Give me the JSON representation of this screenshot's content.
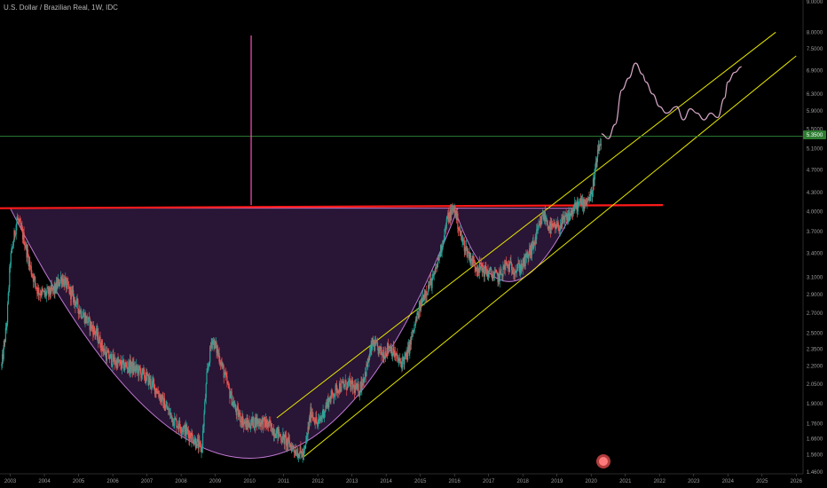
{
  "header": {
    "title": "U.S. Dollar / Brazilian Real, 1W, IDC"
  },
  "chart_data": {
    "type": "candlestick",
    "y_scale": "log",
    "ylim": [
      1.45,
      9.0
    ],
    "xlim": [
      2002.7,
      2026.2
    ],
    "x_ticks": [
      "2003",
      "2004",
      "2005",
      "2006",
      "2007",
      "2008",
      "2009",
      "2010",
      "2011",
      "2012",
      "2013",
      "2014",
      "2015",
      "2016",
      "2017",
      "2018",
      "2019",
      "2020",
      "2021",
      "2022",
      "2023",
      "2024",
      "2025",
      "2026"
    ],
    "y_ticks": [
      "9.0000",
      "8.0000",
      "7.5000",
      "6.9000",
      "6.3000",
      "5.9000",
      "5.5000",
      "5.1000",
      "4.7000",
      "4.3000",
      "4.0000",
      "3.7000",
      "3.4000",
      "3.1000",
      "2.9000",
      "2.7000",
      "2.5000",
      "2.3500",
      "2.2000",
      "2.0500",
      "1.9000",
      "1.7600",
      "1.6600",
      "1.5600",
      "1.4600"
    ],
    "last_price_label": "5.3500",
    "grid": false,
    "colors": {
      "background": "#000000",
      "up": "#26a69a",
      "down": "#ef5350",
      "resistance": "#ff1a1a",
      "channel": "#e6e600",
      "cup_fill": "#7b3fa0",
      "projection": "#d8a8c8",
      "price_line": "#2e7d32",
      "spike": "#ff4db8"
    },
    "price_path": [
      [
        2002.75,
        2.2
      ],
      [
        2002.9,
        2.6
      ],
      [
        2003.0,
        3.3
      ],
      [
        2003.2,
        3.9
      ],
      [
        2003.4,
        3.6
      ],
      [
        2003.6,
        3.2
      ],
      [
        2003.8,
        2.95
      ],
      [
        2004.0,
        2.9
      ],
      [
        2004.3,
        2.95
      ],
      [
        2004.5,
        3.1
      ],
      [
        2004.8,
        2.9
      ],
      [
        2005.0,
        2.75
      ],
      [
        2005.3,
        2.6
      ],
      [
        2005.5,
        2.5
      ],
      [
        2005.8,
        2.3
      ],
      [
        2006.0,
        2.25
      ],
      [
        2006.3,
        2.2
      ],
      [
        2006.5,
        2.2
      ],
      [
        2006.8,
        2.15
      ],
      [
        2007.0,
        2.1
      ],
      [
        2007.3,
        2.0
      ],
      [
        2007.5,
        1.9
      ],
      [
        2007.8,
        1.78
      ],
      [
        2008.0,
        1.74
      ],
      [
        2008.3,
        1.68
      ],
      [
        2008.6,
        1.59
      ],
      [
        2008.75,
        2.1
      ],
      [
        2008.9,
        2.45
      ],
      [
        2009.1,
        2.3
      ],
      [
        2009.4,
        2.0
      ],
      [
        2009.6,
        1.85
      ],
      [
        2009.9,
        1.75
      ],
      [
        2010.2,
        1.78
      ],
      [
        2010.5,
        1.76
      ],
      [
        2010.8,
        1.7
      ],
      [
        2011.0,
        1.66
      ],
      [
        2011.4,
        1.58
      ],
      [
        2011.6,
        1.56
      ],
      [
        2011.8,
        1.85
      ],
      [
        2012.0,
        1.75
      ],
      [
        2012.3,
        1.92
      ],
      [
        2012.6,
        2.03
      ],
      [
        2012.9,
        2.05
      ],
      [
        2013.2,
        2.0
      ],
      [
        2013.4,
        2.15
      ],
      [
        2013.6,
        2.4
      ],
      [
        2013.9,
        2.3
      ],
      [
        2014.1,
        2.38
      ],
      [
        2014.4,
        2.22
      ],
      [
        2014.6,
        2.28
      ],
      [
        2014.9,
        2.65
      ],
      [
        2015.1,
        2.9
      ],
      [
        2015.4,
        3.1
      ],
      [
        2015.6,
        3.45
      ],
      [
        2015.8,
        3.9
      ],
      [
        2016.0,
        4.05
      ],
      [
        2016.2,
        3.6
      ],
      [
        2016.4,
        3.4
      ],
      [
        2016.6,
        3.25
      ],
      [
        2016.8,
        3.2
      ],
      [
        2017.0,
        3.15
      ],
      [
        2017.3,
        3.1
      ],
      [
        2017.5,
        3.25
      ],
      [
        2017.8,
        3.2
      ],
      [
        2018.0,
        3.25
      ],
      [
        2018.3,
        3.5
      ],
      [
        2018.6,
        3.95
      ],
      [
        2018.8,
        3.75
      ],
      [
        2019.0,
        3.75
      ],
      [
        2019.3,
        3.9
      ],
      [
        2019.6,
        4.1
      ],
      [
        2019.8,
        4.15
      ],
      [
        2020.0,
        4.25
      ],
      [
        2020.2,
        5.0
      ],
      [
        2020.3,
        5.3
      ]
    ],
    "projection_path": [
      [
        2020.3,
        5.4
      ],
      [
        2020.5,
        5.3
      ],
      [
        2020.7,
        5.6
      ],
      [
        2020.9,
        6.4
      ],
      [
        2021.1,
        6.7
      ],
      [
        2021.3,
        7.1
      ],
      [
        2021.5,
        6.8
      ],
      [
        2021.6,
        6.6
      ],
      [
        2021.8,
        6.3
      ],
      [
        2022.0,
        6.0
      ],
      [
        2022.2,
        5.85
      ],
      [
        2022.5,
        6.0
      ],
      [
        2022.7,
        5.7
      ],
      [
        2022.9,
        5.95
      ],
      [
        2023.1,
        5.85
      ],
      [
        2023.3,
        5.7
      ],
      [
        2023.5,
        5.85
      ],
      [
        2023.7,
        5.75
      ],
      [
        2023.9,
        6.2
      ],
      [
        2024.0,
        6.6
      ],
      [
        2024.2,
        6.85
      ],
      [
        2024.4,
        7.0
      ]
    ],
    "resistance": {
      "from": [
        2002.7,
        4.05
      ],
      "to": [
        2022.1,
        4.1
      ]
    },
    "channel_upper": {
      "from": [
        2010.8,
        1.8
      ],
      "to": [
        2025.4,
        8.0
      ]
    },
    "channel_lower": {
      "from": [
        2011.6,
        1.55
      ],
      "to": [
        2026.0,
        7.3
      ]
    },
    "cup": {
      "left": [
        2003.0,
        4.05
      ],
      "bottom": [
        2010.0,
        1.54
      ],
      "right": [
        2016.1,
        4.05
      ]
    },
    "handle": {
      "left": [
        2016.0,
        4.05
      ],
      "bottom": [
        2017.6,
        3.05
      ],
      "right": [
        2019.5,
        4.05
      ]
    },
    "price_line": 5.35,
    "spike": {
      "x": 2010.05,
      "low": 4.1,
      "high": 7.9
    }
  }
}
